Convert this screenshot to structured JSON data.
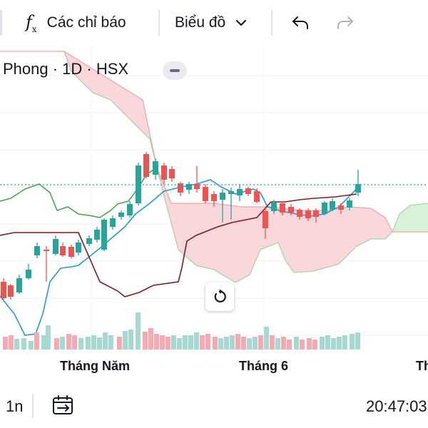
{
  "toolbar": {
    "indicators_icon": "fx-icon",
    "indicators_label": "Các chỉ báo",
    "chart_type_label": "Biểu đồ",
    "chart_type_icon": "chevron-down-icon",
    "undo_icon": "undo-icon",
    "redo_icon": "redo-icon"
  },
  "legend": {
    "symbol_text": "Phong · 1D · HSX",
    "collapse_icon": "minus-icon"
  },
  "reset_icon": "reset-icon",
  "x_axis": {
    "labels": [
      "Tháng Năm",
      "Tháng 6",
      "Th"
    ]
  },
  "bottom": {
    "interval": "1n",
    "date_range_icon": "calendar-range-icon",
    "clock": "20:47:03"
  },
  "colors": {
    "up": "#26a69a",
    "down": "#ef5350",
    "tenkan": "#2196f3",
    "kijun": "#801922",
    "chikou": "#43a047",
    "cloud_bear": "#f8d0d3",
    "cloud_bull": "#d6f0d6",
    "span_a": "#a5d6a7",
    "span_b": "#f4a5ab",
    "last_price_line": "#26a69a"
  },
  "chart_data": {
    "type": "candlestick",
    "title": "Phong · 1D · HSX",
    "x_tick_labels": [
      "Tháng Năm",
      "Tháng 6",
      "Th"
    ],
    "indicator": "Ichimoku Cloud",
    "legend_items": [],
    "grid": true,
    "series": []
  }
}
